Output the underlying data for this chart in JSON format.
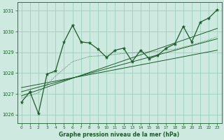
{
  "title": "Graphe pression niveau de la mer (hPa)",
  "background_color": "#ceeae0",
  "grid_color": "#9ecfbe",
  "line_color": "#1a5c28",
  "xlim": [
    -0.5,
    23.5
  ],
  "ylim": [
    1025.6,
    1031.4
  ],
  "yticks": [
    1026,
    1027,
    1028,
    1029,
    1030,
    1031
  ],
  "xticks": [
    0,
    1,
    2,
    3,
    4,
    5,
    6,
    7,
    8,
    9,
    10,
    11,
    12,
    13,
    14,
    15,
    16,
    17,
    18,
    19,
    20,
    21,
    22,
    23
  ],
  "main_x": [
    0,
    1,
    2,
    3,
    4,
    5,
    6,
    7,
    8,
    9,
    10,
    11,
    12,
    13,
    14,
    15,
    16,
    17,
    18,
    19,
    20,
    21,
    22,
    23
  ],
  "main_y": [
    1026.6,
    1027.1,
    1026.05,
    1027.95,
    1028.1,
    1029.5,
    1030.3,
    1029.5,
    1029.45,
    1029.15,
    1028.75,
    1029.1,
    1029.2,
    1028.55,
    1029.1,
    1028.7,
    1028.85,
    1029.2,
    1029.4,
    1030.25,
    1029.5,
    1030.45,
    1030.65,
    1031.05
  ],
  "trend1_x": [
    0,
    23
  ],
  "trend1_y": [
    1026.9,
    1030.15
  ],
  "trend2_x": [
    0,
    23
  ],
  "trend2_y": [
    1027.3,
    1029.1
  ],
  "trend3_x": [
    0,
    23
  ],
  "trend3_y": [
    1027.1,
    1029.65
  ],
  "smooth_x": [
    0,
    2,
    4,
    6,
    8,
    10,
    12,
    14,
    16,
    18,
    20,
    22,
    23
  ],
  "smooth_y": [
    1026.8,
    1027.05,
    1027.85,
    1028.55,
    1028.8,
    1028.85,
    1028.95,
    1029.0,
    1029.05,
    1029.15,
    1029.35,
    1029.6,
    1029.75
  ]
}
